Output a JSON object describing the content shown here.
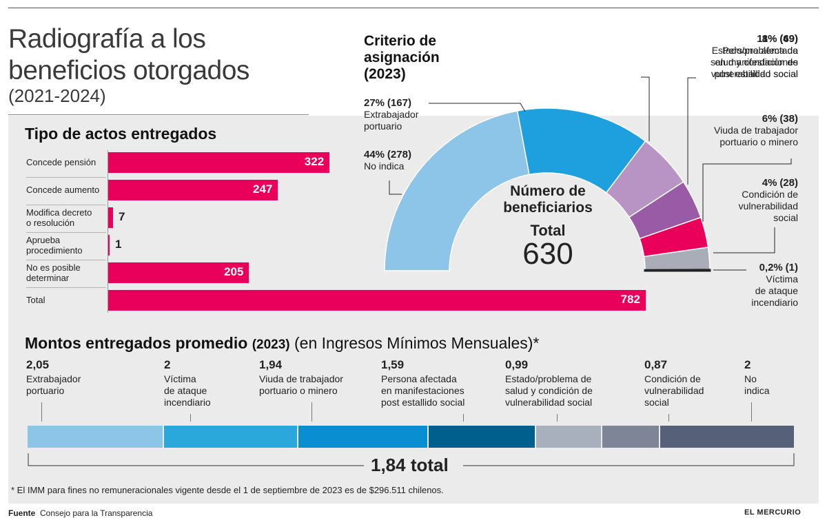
{
  "header": {
    "title_line1": "Radiografía a los",
    "title_line2": "beneficios otorgados",
    "subtitle": "(2021-2024)"
  },
  "chart_data": [
    {
      "type": "bar",
      "title": "Tipo de actos entregados",
      "categories": [
        [
          "Concede pensión"
        ],
        [
          "Concede aumento"
        ],
        [
          "Modifica decreto",
          "o resolución"
        ],
        [
          "Aprueba",
          "procedimiento"
        ],
        [
          "No es posible",
          "determinar"
        ],
        [
          "Total"
        ]
      ],
      "values": [
        322,
        247,
        7,
        1,
        205,
        782
      ],
      "xlim": [
        0,
        782
      ],
      "bar_color": "#e8005a"
    },
    {
      "type": "pie",
      "title": "Criterio de asignación",
      "title_year": "(2023)",
      "center_title_line1": "Número de",
      "center_title_line2": "beneficiarios",
      "center_total_label": "Total",
      "center_total_value": "630",
      "slices": [
        {
          "pct": "44%",
          "count": "(278)",
          "label": [
            "No indica"
          ],
          "value": 278,
          "color": "#8cc5e8"
        },
        {
          "pct": "27%",
          "count": "(167)",
          "label": [
            "Extrabajador",
            "portuario"
          ],
          "value": 167,
          "color": "#1ea0de"
        },
        {
          "pct": "11%",
          "count": "(69)",
          "label": [
            "Persona afectada",
            "en manifestaciones",
            "post estallido social"
          ],
          "value": 69,
          "color": "#b894c4"
        },
        {
          "pct": "8%",
          "count": "(49)",
          "label": [
            "Estado/problema de",
            "salud y condición de",
            "vulnerabilidad social"
          ],
          "value": 49,
          "color": "#9a5ba6"
        },
        {
          "pct": "6%",
          "count": "(38)",
          "label": [
            "Viuda de trabajador",
            "portuario o minero"
          ],
          "value": 38,
          "color": "#e8005a"
        },
        {
          "pct": "4%",
          "count": "(28)",
          "label": [
            "Condición de",
            "vulnerabilidad",
            "social"
          ],
          "value": 28,
          "color": "#a8adb8"
        },
        {
          "pct": "0,2%",
          "count": "(1)",
          "label": [
            "Víctima",
            "de ataque",
            "incendiario"
          ],
          "value": 1,
          "color": "#222222"
        }
      ]
    },
    {
      "type": "bar",
      "title": "Montos entregados promedio",
      "title_year": "(2023)",
      "title_unit": "(en Ingresos Mínimos Mensuales)*",
      "categories": [
        [
          "Extrabajador",
          "portuario"
        ],
        [
          "Víctima",
          "de ataque",
          "incendiario"
        ],
        [
          "Viuda de trabajador",
          "portuario o minero"
        ],
        [
          "Persona afectada",
          "en manifestaciones",
          "post estallido social"
        ],
        [
          "Estado/problema de",
          "salud y condición de",
          "vulnerabilidad social"
        ],
        [
          "Condición de",
          "vulnerabilidad",
          "social"
        ],
        [
          "No",
          "indica"
        ]
      ],
      "values": [
        "2,05",
        "2",
        "1,94",
        "1,59",
        "0,99",
        "0,87",
        "2"
      ],
      "colors": [
        "#8cc5e8",
        "#2aa8dc",
        "#0a8ed2",
        "#005f8c",
        "#a9b0bd",
        "#7d8596",
        "#566078"
      ],
      "total": "1,84 total"
    }
  ],
  "footnote": "* El IMM para fines no remuneracionales vigente desde el 1 de septiembre de 2023 es de $296.511 chilenos.",
  "footer": {
    "source_label": "Fuente",
    "source_text": "Consejo para la Transparencia",
    "brand": "EL MERCURIO"
  }
}
